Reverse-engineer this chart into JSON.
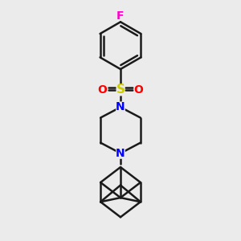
{
  "bg_color": "#ebebeb",
  "bond_color": "#1a1a1a",
  "F_color": "#ff00cc",
  "S_color": "#cccc00",
  "O_color": "#ff0000",
  "N_color": "#0000ff",
  "lw": 1.8,
  "fig_size": 3.0,
  "dpi": 100,
  "xlim": [
    -2.5,
    2.5
  ],
  "ylim": [
    -4.8,
    3.8
  ]
}
